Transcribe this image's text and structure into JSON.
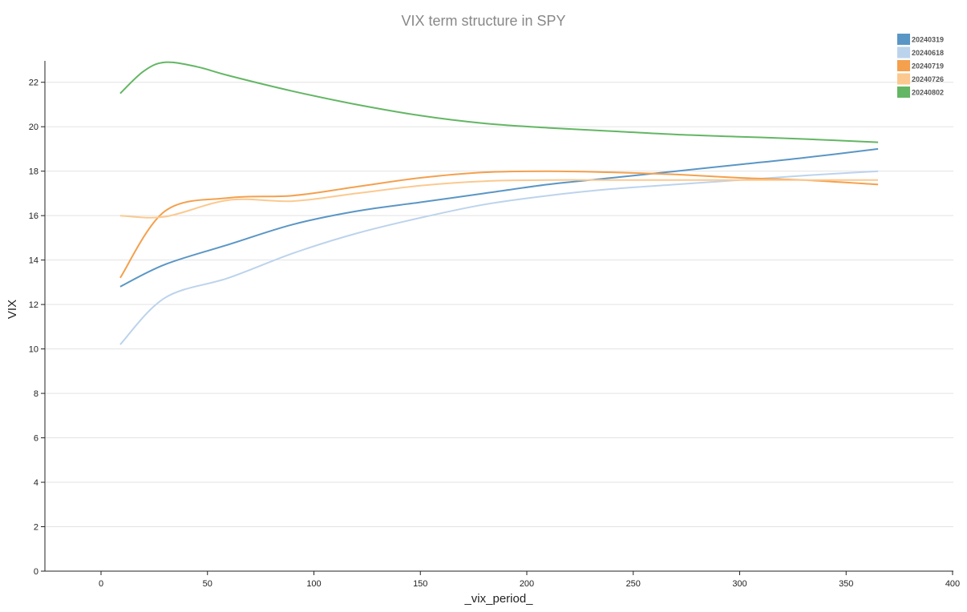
{
  "chart_data": {
    "type": "line",
    "title": "VIX term structure in SPY",
    "xlabel": "_vix_period_",
    "ylabel": "VIX",
    "xlim": [
      -26,
      400
    ],
    "ylim": [
      0,
      23
    ],
    "xticks": [
      0,
      50,
      100,
      150,
      200,
      250,
      300,
      350,
      400
    ],
    "yticks": [
      0,
      2,
      4,
      6,
      8,
      10,
      12,
      14,
      16,
      18,
      20,
      22
    ],
    "grid": "horizontal",
    "legend_position": "top-right",
    "series": [
      {
        "name": "20240319",
        "color": "#5a96c5",
        "x": [
          9,
          30,
          60,
          90,
          120,
          150,
          180,
          210,
          240,
          270,
          300,
          330,
          365
        ],
        "y": [
          12.8,
          13.8,
          14.7,
          15.6,
          16.2,
          16.6,
          17.0,
          17.4,
          17.7,
          18.0,
          18.3,
          18.6,
          19.0
        ]
      },
      {
        "name": "20240618",
        "color": "#bcd3ec",
        "x": [
          9,
          30,
          60,
          90,
          120,
          150,
          180,
          210,
          240,
          270,
          300,
          330,
          365
        ],
        "y": [
          10.2,
          12.3,
          13.2,
          14.3,
          15.2,
          15.9,
          16.5,
          16.9,
          17.2,
          17.4,
          17.6,
          17.8,
          18.0
        ]
      },
      {
        "name": "20240719",
        "color": "#f4a04d",
        "x": [
          9,
          30,
          60,
          90,
          120,
          150,
          180,
          210,
          240,
          270,
          300,
          330,
          365
        ],
        "y": [
          13.2,
          16.2,
          16.8,
          16.9,
          17.3,
          17.7,
          17.95,
          18.0,
          17.95,
          17.85,
          17.7,
          17.6,
          17.4
        ]
      },
      {
        "name": "20240726",
        "color": "#fbc98f",
        "x": [
          9,
          30,
          60,
          90,
          120,
          150,
          180,
          210,
          240,
          270,
          300,
          330,
          365
        ],
        "y": [
          16.0,
          15.95,
          16.7,
          16.65,
          17.0,
          17.35,
          17.55,
          17.6,
          17.6,
          17.6,
          17.6,
          17.6,
          17.6
        ]
      },
      {
        "name": "20240802",
        "color": "#63b664",
        "x": [
          9,
          20,
          30,
          45,
          60,
          90,
          120,
          150,
          180,
          210,
          240,
          270,
          300,
          330,
          365
        ],
        "y": [
          21.5,
          22.5,
          22.9,
          22.7,
          22.3,
          21.6,
          21.0,
          20.5,
          20.15,
          19.95,
          19.8,
          19.65,
          19.55,
          19.45,
          19.3
        ]
      }
    ]
  }
}
